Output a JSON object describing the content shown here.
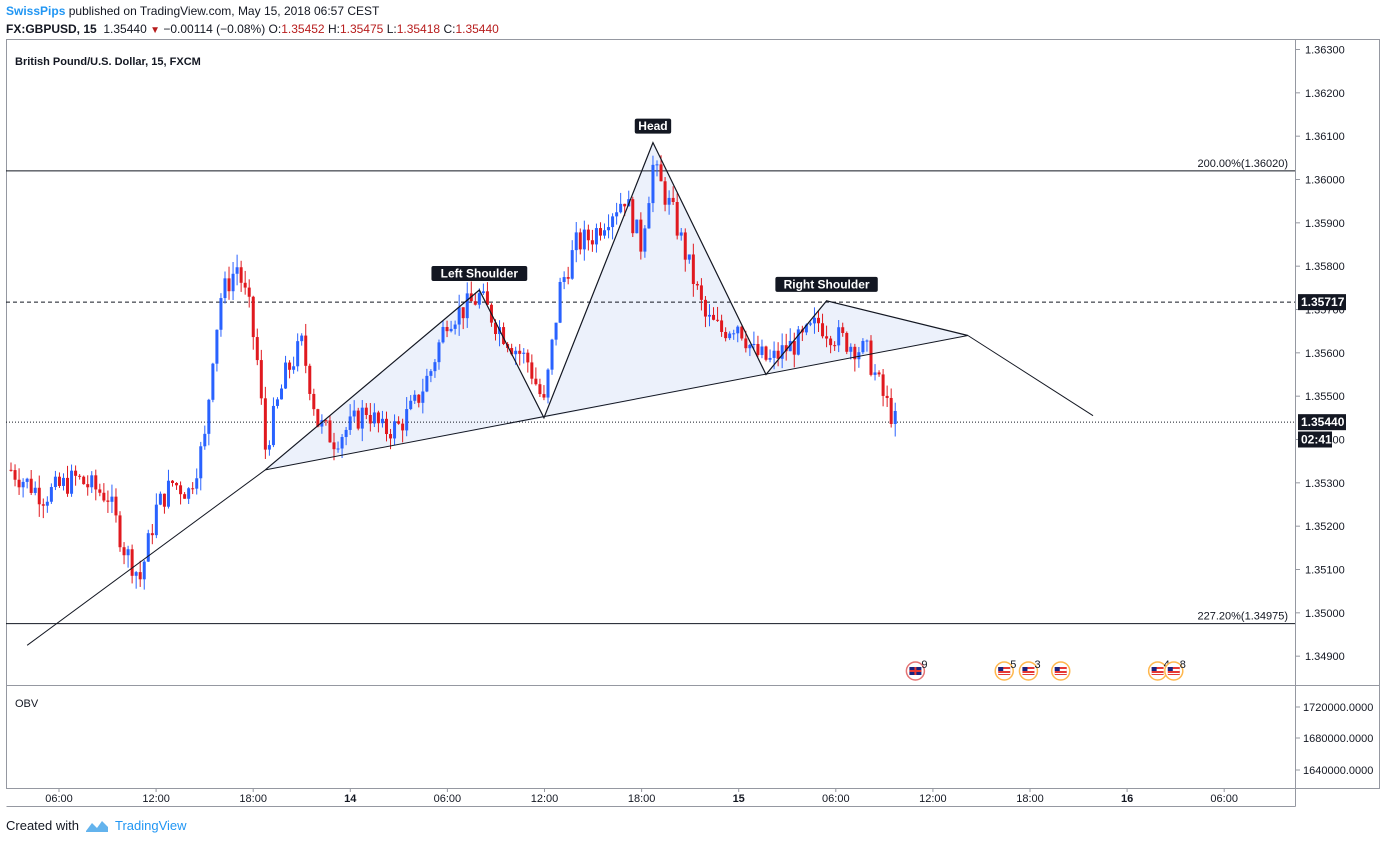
{
  "header": {
    "publisher": "SwissPips",
    "published_text": "published on TradingView.com, May 15, 2018 06:57 CEST",
    "symbol": "FX:GBPUSD, 15",
    "last": "1.35440",
    "change_arrow": "▼",
    "change": "−0.00114 (−0.08%)",
    "o_label": "O:",
    "o_value": "1.35452",
    "h_label": "H:",
    "h_value": "1.35475",
    "l_label": "L:",
    "l_value": "1.35418",
    "c_label": "C:",
    "c_value": "1.35440"
  },
  "footer": {
    "created_with": "Created with",
    "brand": "TradingView"
  },
  "colors": {
    "up": "#2962ff",
    "down": "#e0191f",
    "pattern_fill": "#eaf0fb",
    "price_label_bg": "#131722",
    "link": "#2196f3"
  },
  "chart_data": [
    {
      "type": "candlestick",
      "title": "British Pound/U.S. Dollar, 15, FXCM",
      "y_ticks": [
        "1.36300",
        "1.36200",
        "1.36100",
        "1.36000",
        "1.35900",
        "1.35800",
        "1.35700",
        "1.35600",
        "1.35500",
        "1.35400",
        "1.35300",
        "1.35200",
        "1.35100",
        "1.35000",
        "1.34900"
      ],
      "ylim": [
        1.3485,
        1.3632
      ],
      "x_ticks": [
        "06:00",
        "12:00",
        "18:00",
        "14",
        "06:00",
        "12:00",
        "18:00",
        "15",
        "06:00",
        "12:00",
        "18:00",
        "16",
        "06:00"
      ],
      "price_labels": [
        {
          "text": "1.35717",
          "price": 1.35717,
          "line": "dashed"
        },
        {
          "text": "1.35440",
          "price": 1.3544,
          "line": "dotted"
        },
        {
          "text": "02:41",
          "price": 1.354,
          "line": "none"
        }
      ],
      "fib_levels": [
        {
          "label": "200.00%(1.36020)",
          "price": 1.3602
        },
        {
          "label": "227.20%(1.34975)",
          "price": 1.34975
        }
      ],
      "pattern_labels": [
        {
          "text": "Left Shoulder",
          "t": "2018-05-14 05:00",
          "price": 1.35745
        },
        {
          "text": "Head",
          "t": "2018-05-14 15:45",
          "price": 1.36085
        },
        {
          "text": "Right Shoulder",
          "t": "2018-05-15 02:30",
          "price": 1.3572
        }
      ],
      "pattern_points": [
        {
          "t": "2018-05-13 15:45",
          "price": 1.3533
        },
        {
          "t": "2018-05-14 05:00",
          "price": 1.35745
        },
        {
          "t": "2018-05-14 09:00",
          "price": 1.3545
        },
        {
          "t": "2018-05-14 15:45",
          "price": 1.36085
        },
        {
          "t": "2018-05-14 22:45",
          "price": 1.3555
        },
        {
          "t": "2018-05-15 02:30",
          "price": 1.3572
        },
        {
          "t": "2018-05-15 11:15",
          "price": 1.3564
        }
      ],
      "trend_lines": [
        {
          "from": {
            "t": "2018-05-13 01:00",
            "price": 1.34925
          },
          "to": {
            "t": "2018-05-13 15:45",
            "price": 1.3533
          }
        },
        {
          "from": {
            "t": "2018-05-13 15:45",
            "price": 1.3533
          },
          "to": {
            "t": "2018-05-15 11:15",
            "price": 1.3564
          }
        },
        {
          "from": {
            "t": "2018-05-15 11:15",
            "price": 1.3564
          },
          "to": {
            "t": "2018-05-15 19:00",
            "price": 1.35455
          }
        }
      ],
      "events": [
        {
          "label": "9",
          "t": "2018-05-15 08:00",
          "flag": "uk"
        },
        {
          "label": "5",
          "t": "2018-05-15 13:30",
          "flag": "us"
        },
        {
          "label": "3",
          "t": "2018-05-15 15:00",
          "flag": "us"
        },
        {
          "label": "",
          "t": "2018-05-15 17:00",
          "flag": "us"
        },
        {
          "label": "4",
          "t": "2018-05-15 23:00",
          "flag": "us"
        },
        {
          "label": "8",
          "t": "2018-05-16 00:00",
          "flag": "us"
        }
      ],
      "candles_close_path": [
        [
          "2018-05-13 00:00",
          1.3533
        ],
        [
          "2018-05-13 02:00",
          1.3527
        ],
        [
          "2018-05-13 04:00",
          1.3531
        ],
        [
          "2018-05-13 06:00",
          1.3527
        ],
        [
          "2018-05-13 07:00",
          1.3515
        ],
        [
          "2018-05-13 08:00",
          1.3508
        ],
        [
          "2018-05-13 09:00",
          1.3524
        ],
        [
          "2018-05-13 10:00",
          1.353
        ],
        [
          "2018-05-13 11:00",
          1.3528
        ],
        [
          "2018-05-13 12:00",
          1.354
        ],
        [
          "2018-05-13 12:30",
          1.356
        ],
        [
          "2018-05-13 13:00",
          1.3573
        ],
        [
          "2018-05-13 14:00",
          1.358
        ],
        [
          "2018-05-13 14:45",
          1.357
        ],
        [
          "2018-05-13 15:15",
          1.3558
        ],
        [
          "2018-05-13 15:45",
          1.3538
        ],
        [
          "2018-05-13 17:00",
          1.3555
        ],
        [
          "2018-05-13 18:00",
          1.3562
        ],
        [
          "2018-05-13 19:00",
          1.3544
        ],
        [
          "2018-05-13 20:00",
          1.354
        ],
        [
          "2018-05-13 21:00",
          1.3543
        ],
        [
          "2018-05-13 22:00",
          1.3547
        ],
        [
          "2018-05-13 23:00",
          1.3542
        ],
        [
          "2018-05-14 00:00",
          1.3543
        ],
        [
          "2018-05-14 01:00",
          1.3548
        ],
        [
          "2018-05-14 02:00",
          1.3556
        ],
        [
          "2018-05-14 03:00",
          1.3568
        ],
        [
          "2018-05-14 04:00",
          1.357
        ],
        [
          "2018-05-14 05:00",
          1.3573
        ],
        [
          "2018-05-14 06:00",
          1.3567
        ],
        [
          "2018-05-14 07:00",
          1.3562
        ],
        [
          "2018-05-14 08:00",
          1.3558
        ],
        [
          "2018-05-14 09:00",
          1.3548
        ],
        [
          "2018-05-14 10:00",
          1.3575
        ],
        [
          "2018-05-14 11:00",
          1.3585
        ],
        [
          "2018-05-14 12:00",
          1.3587
        ],
        [
          "2018-05-14 13:00",
          1.3592
        ],
        [
          "2018-05-14 14:00",
          1.3596
        ],
        [
          "2018-05-14 15:00",
          1.3585
        ],
        [
          "2018-05-14 15:45",
          1.3603
        ],
        [
          "2018-05-14 17:00",
          1.3592
        ],
        [
          "2018-05-14 18:00",
          1.358
        ],
        [
          "2018-05-14 19:00",
          1.3568
        ],
        [
          "2018-05-14 20:00",
          1.3565
        ],
        [
          "2018-05-14 21:00",
          1.3567
        ],
        [
          "2018-05-14 22:00",
          1.356
        ],
        [
          "2018-05-14 23:00",
          1.3558
        ],
        [
          "2018-05-15 00:00",
          1.3561
        ],
        [
          "2018-05-15 01:00",
          1.3563
        ],
        [
          "2018-05-15 02:00",
          1.3567
        ],
        [
          "2018-05-15 03:00",
          1.3564
        ],
        [
          "2018-05-15 04:00",
          1.3562
        ],
        [
          "2018-05-15 05:00",
          1.356
        ],
        [
          "2018-05-15 06:00",
          1.355
        ],
        [
          "2018-05-15 06:45",
          1.3544
        ]
      ]
    },
    {
      "type": "line",
      "title": "OBV",
      "y_ticks": [
        "1720000.0000",
        "1680000.0000",
        "1640000.0000"
      ]
    }
  ]
}
